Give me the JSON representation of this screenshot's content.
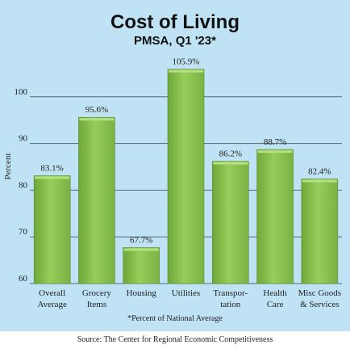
{
  "chart_data": {
    "type": "bar",
    "title": "Cost of Living",
    "subtitle": "PMSA, Q1 '23*",
    "ylabel": "Percent",
    "xlabel": "",
    "ylim": [
      60,
      110
    ],
    "yticks": [
      60,
      70,
      80,
      90,
      100
    ],
    "grid": true,
    "categories": [
      [
        "Overall",
        "Average"
      ],
      [
        "Grocery",
        "Items"
      ],
      [
        "Housing"
      ],
      [
        "Utilities"
      ],
      [
        "Transpor-",
        "tation"
      ],
      [
        "Health",
        "Care"
      ],
      [
        "Misc Goods",
        "& Services"
      ]
    ],
    "values": [
      83.1,
      95.6,
      67.7,
      105.9,
      86.2,
      88.7,
      82.4
    ],
    "value_labels": [
      "83.1%",
      "95.6%",
      "67.7%",
      "105.9%",
      "86.2%",
      "88.7%",
      "82.4%"
    ],
    "bar_color": "#8cc34e",
    "background_color": "#bfe3f5"
  },
  "footnote": "*Percent of National Average",
  "source": "Source: The Center for Regional Economic Competitiveness"
}
